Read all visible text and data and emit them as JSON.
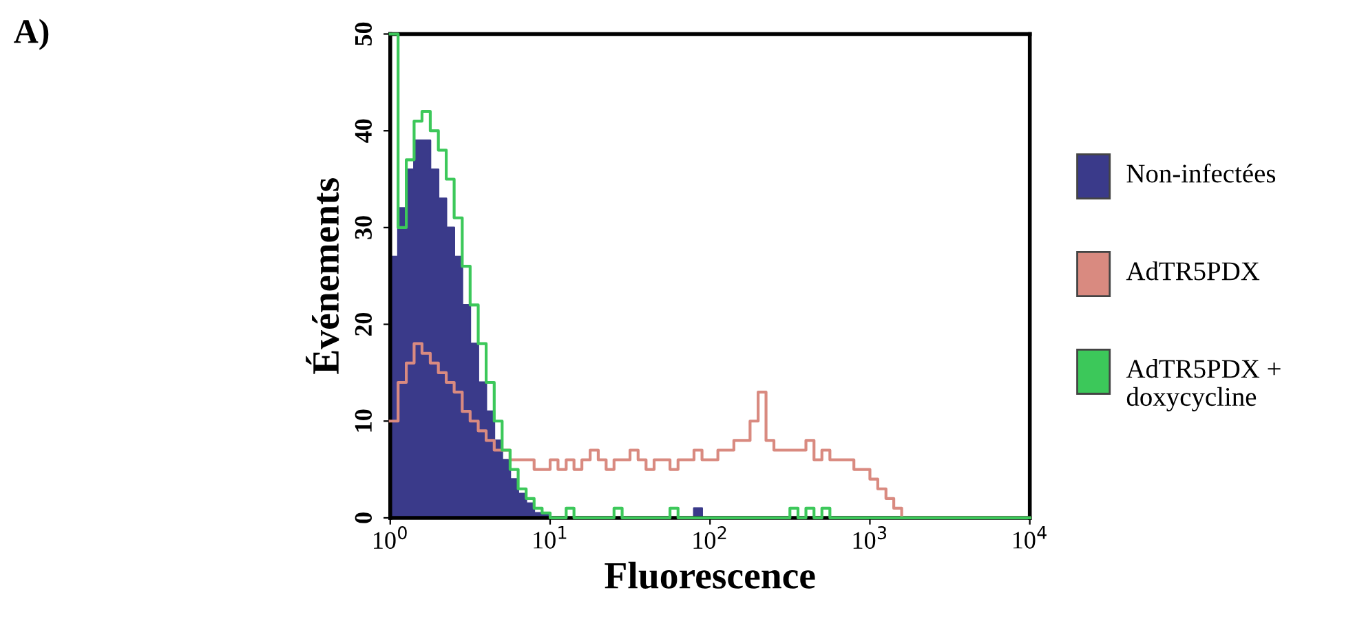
{
  "chart_data": {
    "type": "step",
    "xlabel": "Fluorescence",
    "ylabel": "Événements",
    "log": "x",
    "annotations": [
      "A)"
    ],
    "x": [
      1,
      1.12,
      1.26,
      1.41,
      1.58,
      1.78,
      2,
      2.24,
      2.51,
      2.82,
      3.16,
      3.55,
      3.98,
      4.47,
      5.01,
      5.62,
      6.31,
      7.08,
      7.94,
      8.91,
      10,
      11.2,
      12.6,
      14.1,
      15.8,
      17.8,
      20,
      22.4,
      25.1,
      28.2,
      31.6,
      35.5,
      39.8,
      44.7,
      50.1,
      56.2,
      63.1,
      70.8,
      79.4,
      89.1,
      100,
      112,
      126,
      141,
      158,
      178,
      200,
      224,
      251,
      282,
      316,
      355,
      398,
      447,
      501,
      562,
      631,
      708,
      794,
      891,
      1000,
      1120,
      1260,
      1410,
      1580,
      1780,
      2000,
      10000
    ],
    "series": [
      {
        "name": "Non-infectées",
        "type": "area",
        "color": "#3a3a8a",
        "values": [
          27,
          32,
          36,
          39,
          39,
          36,
          33,
          30,
          27,
          22,
          18,
          14,
          11,
          8,
          6,
          4,
          2.5,
          1.5,
          0.5,
          0.3,
          0,
          0,
          0,
          0,
          0,
          0,
          0,
          0,
          0,
          0,
          0,
          0,
          0,
          0,
          0,
          0,
          0,
          0,
          1,
          0,
          0,
          0,
          0,
          0,
          0,
          0,
          0,
          0,
          0,
          0,
          0,
          0,
          0,
          0,
          0,
          0,
          0,
          0,
          0,
          0,
          0,
          0,
          0,
          0,
          0,
          0,
          0,
          0
        ]
      },
      {
        "name": "AdTR5PDX",
        "color": "#d98a80",
        "values": [
          10,
          14,
          16,
          18,
          17,
          16,
          15,
          14,
          13,
          11,
          10,
          9,
          8,
          7,
          7,
          6,
          6,
          6,
          5,
          5,
          6,
          5,
          6,
          5,
          6,
          7,
          6,
          5,
          6,
          6,
          7,
          6,
          5,
          6,
          6,
          5,
          6,
          6,
          7,
          6,
          6,
          7,
          7,
          8,
          8,
          10,
          13,
          8,
          7,
          7,
          7,
          7,
          8,
          6,
          7,
          6,
          6,
          6,
          5,
          5,
          4,
          3,
          2,
          1,
          0,
          0,
          0,
          0
        ]
      },
      {
        "name": "AdTR5PDX + doxycycline",
        "color": "#3cc85a",
        "values": [
          50,
          30,
          37,
          41,
          42,
          40,
          38,
          35,
          31,
          26,
          22,
          18,
          14,
          10,
          7,
          5,
          3,
          2,
          1,
          0.5,
          0,
          0,
          1,
          0,
          0,
          0,
          0,
          0,
          1,
          0,
          0,
          0,
          0,
          0,
          0,
          1,
          0,
          0,
          0,
          0,
          0,
          0,
          0,
          0,
          0,
          0,
          0,
          0,
          0,
          0,
          1,
          0,
          1,
          0,
          1,
          0,
          0,
          0,
          0,
          0,
          0,
          0,
          0,
          0,
          0,
          0,
          0,
          0
        ]
      }
    ],
    "xlim": [
      1,
      10000
    ],
    "xticks": [
      {
        "value": 1,
        "label": "10$^{0}$"
      },
      {
        "value": 10,
        "label": "10$^{1}$"
      },
      {
        "value": 100,
        "label": "10$^{2}$"
      },
      {
        "value": 1000,
        "label": "10$^{3}$"
      },
      {
        "value": 10000,
        "label": "10$^{4}$"
      }
    ],
    "ylim": [
      0,
      50
    ],
    "yticks": [
      0,
      10,
      20,
      30,
      40,
      50
    ],
    "legend": "right",
    "grid": false
  }
}
